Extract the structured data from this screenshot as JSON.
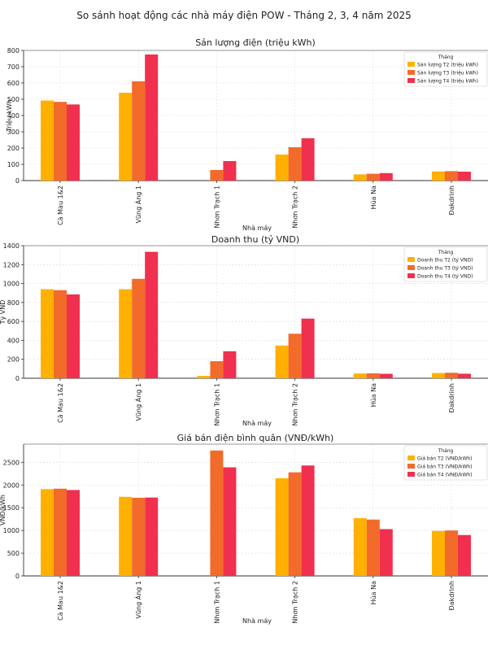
{
  "suptitle": "So sánh hoạt động các nhà máy điện POW - Tháng 2, 3, 4 năm 2025",
  "colors": [
    "#FFB000",
    "#F26B2A",
    "#F0304E"
  ],
  "chart_data": [
    {
      "type": "bar",
      "title": "Sản lượng điện (triệu kWh)",
      "xlabel": "Nhà máy",
      "ylabel": "Triệu kWh",
      "ylim": [
        0,
        800
      ],
      "yticks": [
        0,
        100,
        200,
        300,
        400,
        500,
        600,
        700,
        800
      ],
      "categories": [
        "Cà Mau 1&2",
        "Vũng Áng 1",
        "Nhơn Trạch 1",
        "Nhơn Trạch 2",
        "Hủa Na",
        "Đakdrinh"
      ],
      "legend_title": "Tháng",
      "legend_position": "top-right",
      "grid": true,
      "series": [
        {
          "name": "Sản lượng T2 (triệu kWh)",
          "values": [
            492,
            540,
            0,
            160,
            38,
            56
          ]
        },
        {
          "name": "Sản lượng T3 (triệu kWh)",
          "values": [
            484,
            610,
            65,
            205,
            42,
            58
          ]
        },
        {
          "name": "Sản lượng T4 (triệu kWh)",
          "values": [
            468,
            775,
            120,
            260,
            46,
            55
          ]
        }
      ]
    },
    {
      "type": "bar",
      "title": "Doanh thu (tỷ VND)",
      "xlabel": "Nhà máy",
      "ylabel": "Tỷ VND",
      "ylim": [
        0,
        1400
      ],
      "yticks": [
        0,
        200,
        400,
        600,
        800,
        1000,
        1200,
        1400
      ],
      "categories": [
        "Cà Mau 1&2",
        "Vũng Áng 1",
        "Nhơn Trạch 1",
        "Nhơn Trạch 2",
        "Hủa Na",
        "Đakdrinh"
      ],
      "legend_title": "Tháng",
      "legend_position": "top-right",
      "grid": true,
      "series": [
        {
          "name": "Doanh thu T2 (tỷ VND)",
          "values": [
            940,
            940,
            25,
            345,
            50,
            55
          ]
        },
        {
          "name": "Doanh thu T3 (tỷ VND)",
          "values": [
            930,
            1050,
            180,
            470,
            52,
            58
          ]
        },
        {
          "name": "Doanh thu T4 (tỷ VND)",
          "values": [
            885,
            1335,
            285,
            630,
            47,
            48
          ]
        }
      ]
    },
    {
      "type": "bar",
      "title": "Giá bán điện bình quân (VNĐ/kWh)",
      "xlabel": "Nhà máy",
      "ylabel": "VNĐ/kWh",
      "ylim": [
        0,
        2900
      ],
      "yticks": [
        0,
        500,
        1000,
        1500,
        2000,
        2500
      ],
      "categories": [
        "Cà Mau 1&2",
        "Vũng Áng 1",
        "Nhơn Trạch 1",
        "Nhơn Trạch 2",
        "Hủa Na",
        "Đakdrinh"
      ],
      "legend_title": "Tháng",
      "legend_position": "top-right",
      "grid": true,
      "series": [
        {
          "name": "Giá bán T2 (VNĐ/kWh)",
          "values": [
            1910,
            1740,
            0,
            2150,
            1270,
            990
          ]
        },
        {
          "name": "Giá bán T3 (VNĐ/kWh)",
          "values": [
            1920,
            1720,
            2760,
            2280,
            1240,
            1000
          ]
        },
        {
          "name": "Giá bán T4 (VNĐ/kWh)",
          "values": [
            1890,
            1725,
            2390,
            2430,
            1030,
            900
          ]
        }
      ]
    }
  ]
}
